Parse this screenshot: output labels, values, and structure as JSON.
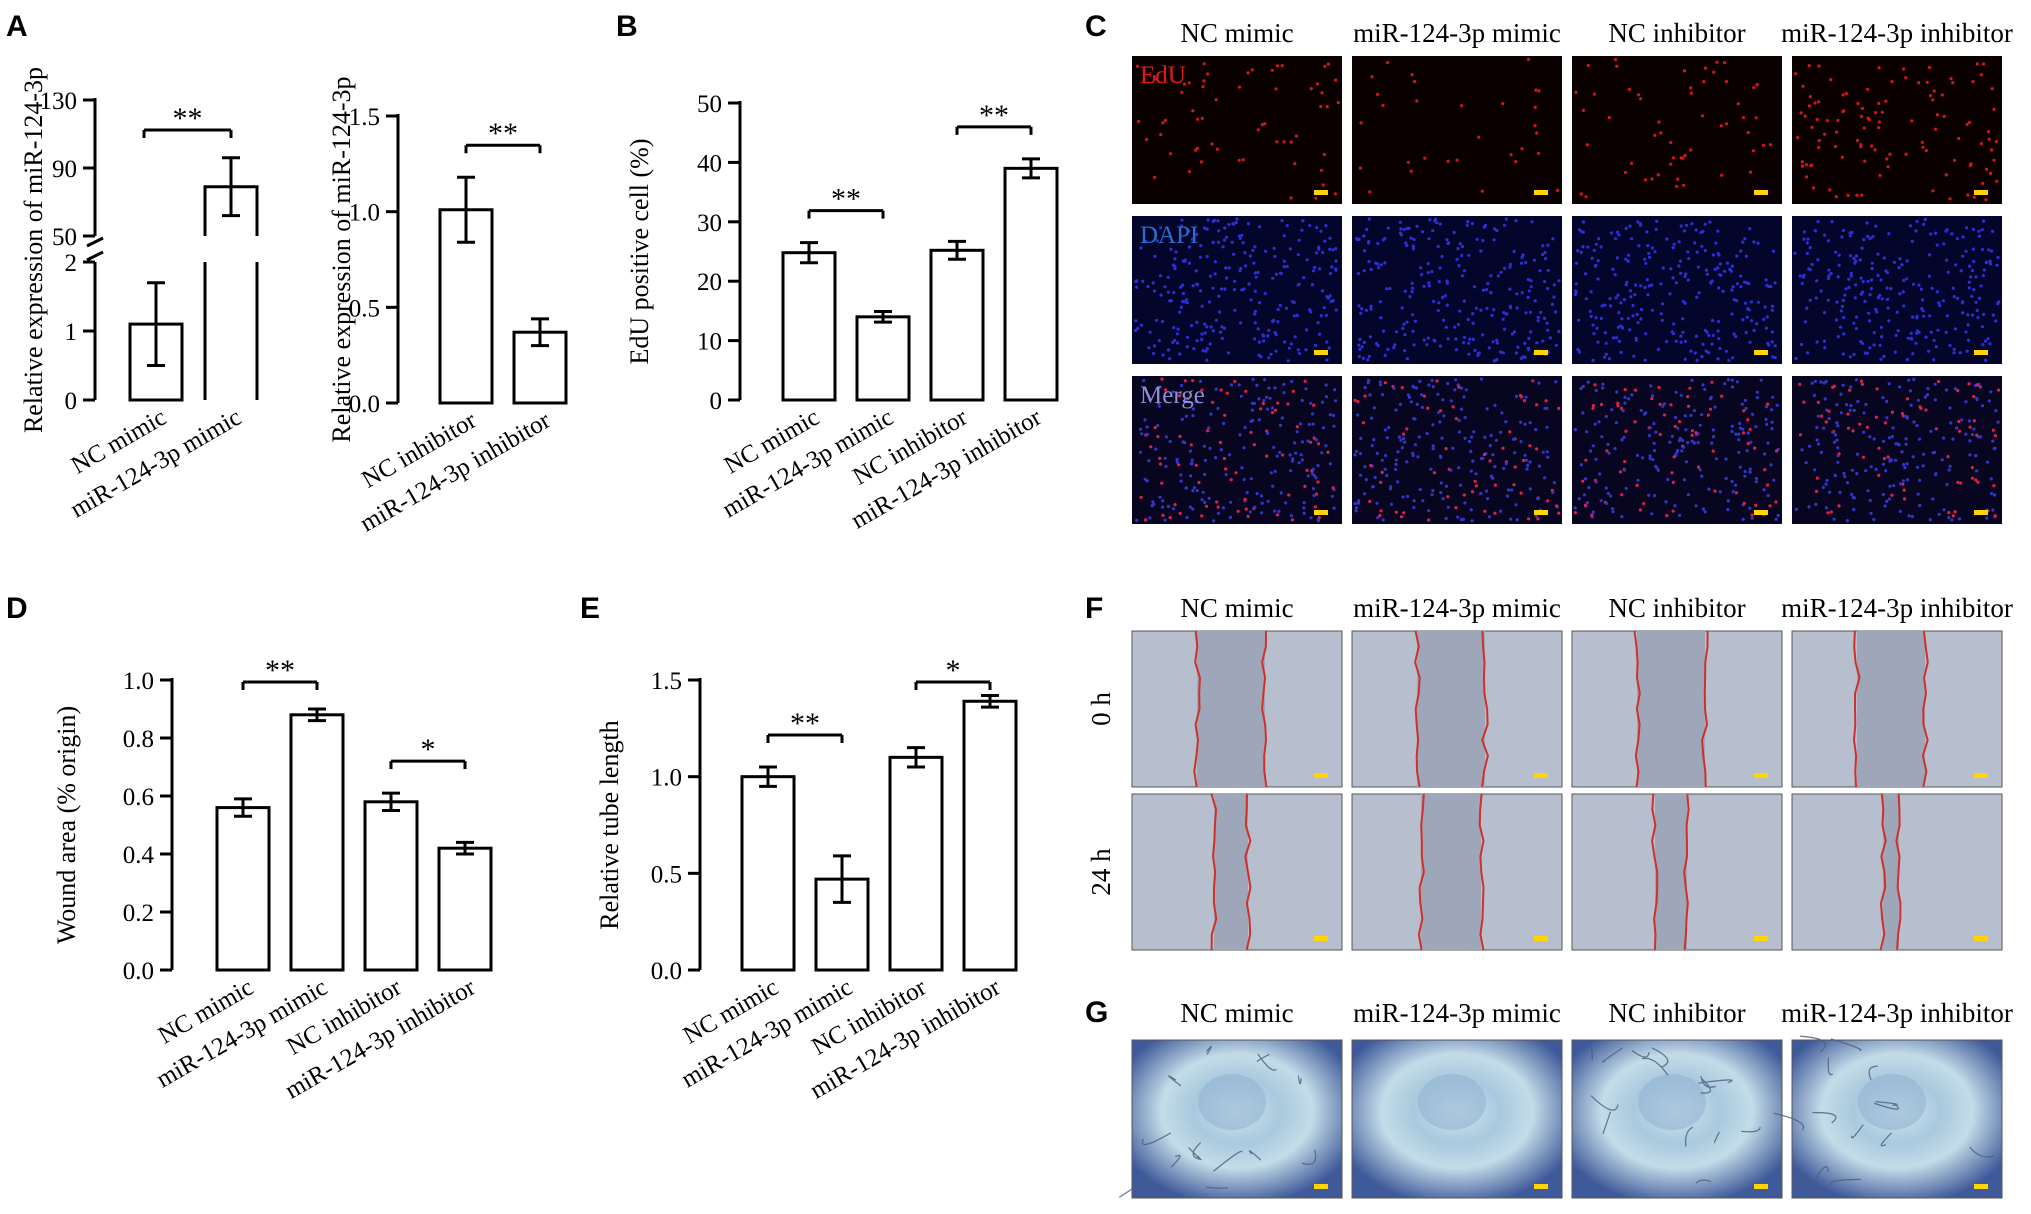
{
  "panels": {
    "A": {
      "letter": "A"
    },
    "B": {
      "letter": "B"
    },
    "C": {
      "letter": "C"
    },
    "D": {
      "letter": "D"
    },
    "E": {
      "letter": "E"
    },
    "F": {
      "letter": "F"
    },
    "G": {
      "letter": "G"
    }
  },
  "micrographs": {
    "columns": [
      "NC mimic",
      "miR-124-3p mimic",
      "NC inhibitor",
      "miR-124-3p inhibitor"
    ],
    "C_rows": [
      {
        "label": "EdU",
        "color": "#e31a1c"
      },
      {
        "label": "DAPI",
        "color": "#2a6fd0"
      },
      {
        "label": "Merge",
        "color": "#8f8fd6"
      }
    ],
    "F_rows": [
      "0 h",
      "24 h"
    ],
    "G_rows": [
      ""
    ],
    "scale_bar_color": "#ffd400"
  },
  "chart_data": [
    {
      "panel": "A",
      "type": "bar",
      "categories": [
        "NC mimic",
        "miR-124-3p mimic"
      ],
      "values": [
        1.1,
        79
      ],
      "errors": [
        0.6,
        17
      ],
      "ylabel": "Relative expression of miR-124-3p",
      "broken_axis": {
        "lower": [
          0,
          2
        ],
        "upper": [
          50,
          130
        ]
      },
      "yticks_lower": [
        "0",
        "1",
        "2"
      ],
      "yticks_upper": [
        "50",
        "90",
        "130"
      ],
      "significance": [
        {
          "from": 0,
          "to": 1,
          "label": "**"
        }
      ]
    },
    {
      "panel": "A",
      "type": "bar",
      "categories": [
        "NC inhibitor",
        "miR-124-3p inhibitor"
      ],
      "values": [
        1.01,
        0.37
      ],
      "errors": [
        0.17,
        0.07
      ],
      "ylabel": "Relative expression of miR-124-3p",
      "ylim": [
        0,
        1.5
      ],
      "yticks": [
        "0.0",
        "0.5",
        "1.0",
        "1.5"
      ],
      "significance": [
        {
          "from": 0,
          "to": 1,
          "label": "**"
        }
      ]
    },
    {
      "panel": "B",
      "type": "bar",
      "categories": [
        "NC mimic",
        "miR-124-3p mimic",
        "NC inhibitor",
        "miR-124-3p inhibitor"
      ],
      "values": [
        24.8,
        14,
        25.2,
        39
      ],
      "errors": [
        1.7,
        0.9,
        1.5,
        1.6
      ],
      "ylabel": "EdU positive cell (%)",
      "ylim": [
        0,
        50
      ],
      "yticks": [
        "0",
        "10",
        "20",
        "30",
        "40",
        "50"
      ],
      "significance": [
        {
          "from": 0,
          "to": 1,
          "label": "**"
        },
        {
          "from": 2,
          "to": 3,
          "label": "**"
        }
      ]
    },
    {
      "panel": "D",
      "type": "bar",
      "categories": [
        "NC mimic",
        "miR-124-3p mimic",
        "NC inhibitor",
        "miR-124-3p inhibitor"
      ],
      "values": [
        0.56,
        0.88,
        0.58,
        0.42
      ],
      "errors": [
        0.03,
        0.02,
        0.03,
        0.02
      ],
      "ylabel": "Wound area (% origin)",
      "ylim": [
        0,
        1.0
      ],
      "yticks": [
        "0.0",
        "0.2",
        "0.4",
        "0.6",
        "0.8",
        "1.0"
      ],
      "significance": [
        {
          "from": 0,
          "to": 1,
          "label": "**"
        },
        {
          "from": 2,
          "to": 3,
          "label": "*"
        }
      ]
    },
    {
      "panel": "E",
      "type": "bar",
      "categories": [
        "NC mimic",
        "miR-124-3p mimic",
        "NC inhibitor",
        "miR-124-3p inhibitor"
      ],
      "values": [
        1.0,
        0.47,
        1.1,
        1.39
      ],
      "errors": [
        0.05,
        0.12,
        0.05,
        0.03
      ],
      "ylabel": "Relative tube length",
      "ylim": [
        0,
        1.5
      ],
      "yticks": [
        "0.0",
        "0.5",
        "1.0",
        "1.5"
      ],
      "significance": [
        {
          "from": 0,
          "to": 1,
          "label": "**"
        },
        {
          "from": 2,
          "to": 3,
          "label": "*"
        }
      ]
    }
  ]
}
